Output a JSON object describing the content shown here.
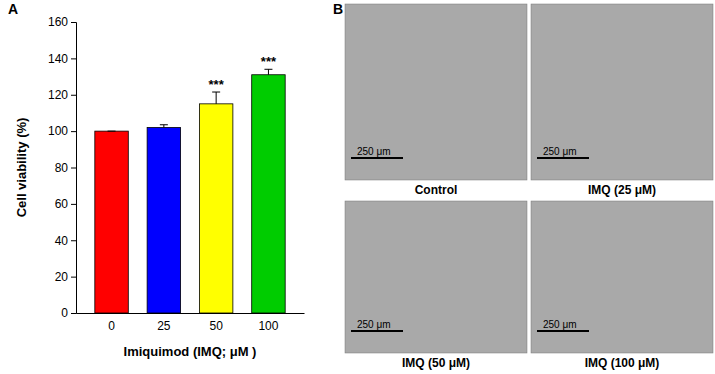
{
  "chart_data": {
    "type": "bar",
    "x_label": "Imiquimod (IMQ; μM )",
    "y_label": "Cell viability (%)",
    "categories": [
      "0",
      "25",
      "50",
      "100"
    ],
    "values": [
      100,
      102,
      115,
      131
    ],
    "errors": [
      0,
      1.5,
      6.5,
      3
    ],
    "significance": [
      null,
      null,
      "***",
      "***"
    ],
    "colors": [
      "#ff0000",
      "#0000ff",
      "#ffff00",
      "#00cc00"
    ],
    "ylim": [
      0,
      160
    ],
    "yticks": [
      0,
      20,
      40,
      60,
      80,
      100,
      120,
      140,
      160
    ],
    "grid": false
  },
  "figure": {
    "panel_labels": [
      "A",
      "B"
    ],
    "images": [
      {
        "caption": "Control",
        "scale_bar": "250 μm"
      },
      {
        "caption": "IMQ (25 μM)",
        "scale_bar": "250 μm"
      },
      {
        "caption": "IMQ (50 μM)",
        "scale_bar": "250 μm"
      },
      {
        "caption": "IMQ (100 μM)",
        "scale_bar": "250 μm"
      }
    ]
  }
}
